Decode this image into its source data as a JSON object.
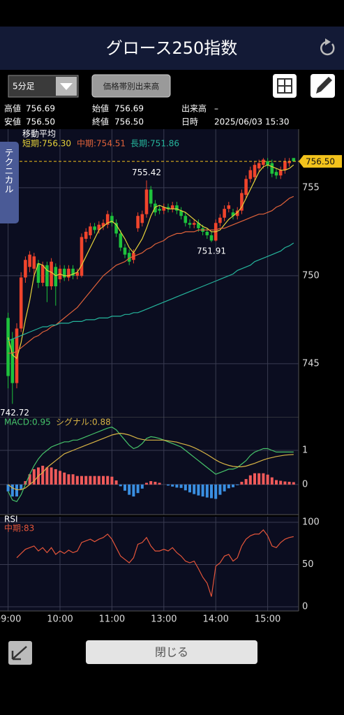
{
  "header": {
    "title": "グロース250指数"
  },
  "controls": {
    "interval": "5分足",
    "volume_button": "価格帯別出来高",
    "close_button": "閉じる"
  },
  "info": {
    "rows": [
      [
        {
          "label": "高値",
          "value": "756.69"
        },
        {
          "label": "始値",
          "value": "756.69"
        },
        {
          "label": "出来高",
          "value": "–"
        }
      ],
      [
        {
          "label": "安値",
          "value": "756.50"
        },
        {
          "label": "終値",
          "value": "756.50"
        },
        {
          "label": "日時",
          "value": "2025/06/03 15:30"
        }
      ]
    ]
  },
  "side_tab": "テクニカル",
  "chart_data": [
    {
      "type": "candlestick",
      "legend_title": "移動平均",
      "categories": [
        "09:00",
        null,
        null,
        null,
        null,
        null,
        null,
        null,
        null,
        null,
        null,
        null,
        "10:00",
        null,
        null,
        null,
        null,
        null,
        null,
        null,
        null,
        null,
        null,
        null,
        "11:00",
        null,
        null,
        null,
        null,
        null,
        null,
        null,
        null,
        null,
        null,
        null,
        "13:00",
        null,
        null,
        null,
        null,
        null,
        null,
        null,
        null,
        null,
        null,
        null,
        "14:00",
        null,
        null,
        null,
        null,
        null,
        null,
        null,
        null,
        null,
        null,
        null,
        "15:00",
        null,
        null,
        null,
        null,
        null,
        null
      ],
      "open": [
        747.6,
        746.4,
        743.9,
        747.0,
        749.9,
        750.5,
        750.4,
        750.7,
        749.6,
        750.6,
        749.4,
        750.5,
        749.8,
        750.4,
        749.9,
        750.4,
        750.0,
        750.0,
        752.1,
        752.3,
        752.8,
        752.6,
        752.8,
        752.9,
        753.4,
        753.0,
        752.4,
        751.6,
        751.3,
        750.9,
        752.7,
        753.0,
        753.5,
        754.9,
        754.1,
        753.8,
        753.7,
        753.9,
        753.8,
        754.0,
        753.7,
        753.4,
        753.0,
        752.9,
        753.0,
        752.7,
        752.5,
        752.3,
        752.0,
        753.0,
        753.3,
        753.8,
        753.6,
        753.4,
        753.7,
        754.6,
        755.5,
        755.6,
        756.1,
        756.3,
        756.5,
        756.4,
        755.9,
        755.7,
        756.0,
        756.4,
        756.69
      ],
      "high": [
        747.9,
        746.8,
        747.3,
        750.2,
        751.1,
        751.4,
        751.3,
        750.9,
        750.8,
        750.8,
        751.0,
        750.7,
        750.6,
        750.6,
        750.6,
        750.6,
        750.4,
        752.4,
        752.7,
        753.0,
        753.0,
        753.1,
        753.2,
        753.7,
        753.6,
        753.2,
        752.6,
        751.8,
        751.5,
        751.5,
        753.6,
        753.7,
        755.42,
        755.1,
        754.3,
        754.0,
        754.1,
        754.1,
        754.2,
        754.2,
        753.9,
        753.6,
        753.2,
        753.2,
        753.2,
        752.9,
        752.7,
        752.5,
        753.2,
        753.5,
        754.0,
        754.2,
        753.8,
        753.9,
        754.9,
        755.7,
        756.2,
        756.5,
        756.6,
        756.69,
        756.69,
        756.6,
        756.1,
        756.2,
        756.69,
        756.69,
        756.69
      ],
      "low": [
        743.6,
        742.72,
        743.6,
        746.8,
        749.6,
        750.2,
        749.9,
        749.3,
        749.4,
        748.5,
        749.2,
        748.3,
        749.6,
        749.7,
        749.7,
        749.8,
        749.8,
        749.9,
        751.9,
        752.1,
        752.4,
        752.4,
        752.6,
        752.7,
        752.8,
        752.2,
        751.4,
        751.0,
        750.6,
        750.7,
        752.5,
        752.8,
        753.3,
        753.9,
        753.4,
        753.5,
        753.5,
        753.6,
        753.6,
        753.5,
        753.2,
        752.8,
        752.7,
        752.7,
        752.5,
        752.3,
        752.1,
        751.91,
        751.95,
        752.8,
        753.1,
        753.6,
        753.2,
        753.2,
        753.5,
        754.4,
        755.3,
        755.4,
        755.9,
        756.1,
        756.1,
        755.6,
        755.5,
        755.5,
        755.8,
        756.2,
        756.5
      ],
      "close": [
        744.3,
        743.9,
        747.0,
        749.9,
        750.9,
        751.2,
        751.1,
        749.6,
        750.6,
        749.4,
        750.8,
        749.4,
        750.4,
        749.9,
        750.4,
        750.0,
        750.2,
        752.2,
        752.5,
        752.8,
        752.6,
        752.9,
        753.0,
        753.5,
        753.0,
        752.4,
        751.6,
        751.2,
        750.8,
        751.3,
        753.4,
        753.5,
        754.9,
        754.1,
        753.6,
        753.7,
        753.9,
        753.8,
        754.0,
        753.7,
        753.4,
        753.0,
        752.9,
        753.0,
        752.7,
        752.5,
        752.3,
        752.0,
        753.0,
        753.3,
        753.8,
        754.0,
        753.4,
        753.7,
        754.7,
        755.5,
        756.0,
        756.3,
        756.4,
        756.6,
        756.3,
        755.8,
        755.7,
        756.0,
        756.5,
        756.5,
        756.5
      ],
      "up_color": "#f0442c",
      "down_color": "#1ec23c",
      "series": [
        {
          "name": "短期:756.30",
          "color": "#e6d23a",
          "values": [
            746.5,
            745.5,
            745.3,
            746.2,
            747.5,
            748.6,
            750.0,
            750.7,
            750.6,
            750.3,
            750.2,
            750.0,
            750.1,
            750.0,
            750.0,
            750.1,
            750.2,
            750.6,
            751.1,
            751.6,
            752.1,
            752.6,
            752.8,
            753.0,
            753.1,
            752.9,
            752.5,
            752.1,
            751.6,
            751.3,
            751.7,
            752.1,
            752.7,
            753.4,
            753.9,
            754.0,
            753.9,
            753.8,
            753.8,
            753.8,
            753.7,
            753.6,
            753.4,
            753.2,
            753.0,
            752.8,
            752.7,
            752.5,
            752.5,
            752.6,
            752.9,
            753.2,
            753.4,
            753.6,
            753.9,
            754.4,
            754.9,
            755.4,
            755.9,
            756.2,
            756.3,
            756.2,
            756.1,
            756.0,
            756.0,
            756.1,
            756.3
          ]
        },
        {
          "name": "中期:754.51",
          "color": "#e0623a",
          "values": [
            745.6,
            745.6,
            745.7,
            745.9,
            746.1,
            746.3,
            746.5,
            746.6,
            746.8,
            746.9,
            747.1,
            747.2,
            747.4,
            747.6,
            747.8,
            748.0,
            748.2,
            748.5,
            748.8,
            749.1,
            749.4,
            749.7,
            750.0,
            750.2,
            750.4,
            750.6,
            750.7,
            750.8,
            751.0,
            751.1,
            751.2,
            751.3,
            751.5,
            751.6,
            751.8,
            751.9,
            752.0,
            752.2,
            752.3,
            752.4,
            752.4,
            752.5,
            752.5,
            752.5,
            752.6,
            752.6,
            752.6,
            752.6,
            752.6,
            752.7,
            752.7,
            752.8,
            752.9,
            753.0,
            753.1,
            753.2,
            753.3,
            753.4,
            753.5,
            753.5,
            753.6,
            753.7,
            753.9,
            754.0,
            754.2,
            754.4,
            754.51
          ]
        },
        {
          "name": "長期:751.86",
          "color": "#25b59c",
          "values": [
            746.3,
            746.4,
            746.5,
            746.6,
            746.7,
            746.8,
            746.9,
            747.0,
            747.1,
            747.1,
            747.2,
            747.2,
            747.3,
            747.3,
            747.3,
            747.4,
            747.4,
            747.4,
            747.5,
            747.5,
            747.5,
            747.6,
            747.6,
            747.6,
            747.7,
            747.7,
            747.7,
            747.8,
            747.8,
            747.9,
            747.9,
            748.0,
            748.1,
            748.2,
            748.3,
            748.4,
            748.5,
            748.6,
            748.7,
            748.8,
            748.9,
            749.0,
            749.1,
            749.2,
            749.3,
            749.4,
            749.5,
            749.6,
            749.7,
            749.8,
            749.9,
            750.0,
            750.1,
            750.3,
            750.4,
            750.5,
            750.6,
            750.8,
            750.9,
            751.0,
            751.1,
            751.2,
            751.3,
            751.4,
            751.6,
            751.7,
            751.86
          ]
        }
      ],
      "annotations": [
        {
          "value": 742.72,
          "label": "742.72"
        },
        {
          "value": 755.42,
          "label": "755.42"
        },
        {
          "value": 751.91,
          "label": "751.91"
        }
      ],
      "last": {
        "value": 756.5,
        "label": "756.50",
        "color": "#f2c21c"
      },
      "ylim": [
        741.94,
        758.33
      ],
      "yticks": [
        745,
        750,
        755
      ],
      "grid": true
    },
    {
      "type": "macd",
      "series": [
        {
          "name": "MACD:0.95",
          "color": "#46c46a",
          "values": [
            -0.2,
            -0.45,
            -0.5,
            -0.3,
            0.0,
            0.3,
            0.55,
            0.75,
            0.9,
            1.0,
            1.1,
            1.15,
            1.2,
            1.25,
            1.25,
            1.3,
            1.3,
            1.35,
            1.4,
            1.45,
            1.5,
            1.55,
            1.6,
            1.65,
            1.68,
            1.6,
            1.45,
            1.3,
            1.15,
            1.05,
            1.1,
            1.2,
            1.35,
            1.4,
            1.38,
            1.35,
            1.3,
            1.25,
            1.2,
            1.15,
            1.1,
            1.0,
            0.9,
            0.8,
            0.7,
            0.6,
            0.5,
            0.4,
            0.3,
            0.35,
            0.4,
            0.45,
            0.45,
            0.5,
            0.6,
            0.7,
            0.85,
            0.95,
            1.0,
            1.05,
            1.05,
            1.0,
            0.95,
            0.95,
            0.95,
            0.95,
            0.95
          ]
        },
        {
          "name": "シグナル:0.88",
          "color": "#d8b445",
          "values": [
            0.0,
            -0.1,
            -0.15,
            -0.15,
            -0.1,
            0.0,
            0.1,
            0.25,
            0.35,
            0.5,
            0.6,
            0.7,
            0.8,
            0.9,
            0.95,
            1.0,
            1.05,
            1.1,
            1.15,
            1.2,
            1.25,
            1.3,
            1.35,
            1.4,
            1.45,
            1.48,
            1.5,
            1.48,
            1.45,
            1.4,
            1.35,
            1.32,
            1.3,
            1.3,
            1.3,
            1.3,
            1.3,
            1.28,
            1.26,
            1.24,
            1.2,
            1.17,
            1.13,
            1.08,
            1.02,
            0.95,
            0.88,
            0.8,
            0.72,
            0.65,
            0.6,
            0.56,
            0.53,
            0.52,
            0.52,
            0.54,
            0.58,
            0.62,
            0.67,
            0.72,
            0.76,
            0.79,
            0.82,
            0.84,
            0.86,
            0.87,
            0.88
          ]
        }
      ],
      "histogram": {
        "up_color": "#f05a5a",
        "down_color": "#3a8fe2",
        "values": [
          -0.2,
          -0.35,
          -0.35,
          -0.15,
          0.1,
          0.3,
          0.45,
          0.5,
          0.55,
          0.5,
          0.5,
          0.45,
          0.4,
          0.35,
          0.3,
          0.3,
          0.25,
          0.25,
          0.25,
          0.25,
          0.25,
          0.25,
          0.25,
          0.25,
          0.23,
          0.12,
          -0.05,
          -0.18,
          -0.3,
          -0.35,
          -0.25,
          -0.12,
          0.05,
          0.1,
          0.08,
          0.05,
          0.0,
          -0.03,
          -0.06,
          -0.09,
          -0.1,
          -0.17,
          -0.23,
          -0.28,
          -0.32,
          -0.35,
          -0.38,
          -0.4,
          -0.42,
          -0.3,
          -0.2,
          -0.11,
          -0.08,
          -0.02,
          0.08,
          0.16,
          0.27,
          0.33,
          0.33,
          0.33,
          0.29,
          0.21,
          0.13,
          0.11,
          0.09,
          0.08,
          0.07
        ]
      },
      "ylim": [
        -0.88,
        1.96
      ],
      "yticks": [
        0,
        1
      ],
      "grid": true
    },
    {
      "type": "line",
      "title": "RSI",
      "series": [
        {
          "name": "中期:83",
          "color": "#e5553a",
          "values": [
            null,
            null,
            58,
            63,
            68,
            70,
            72,
            66,
            70,
            64,
            70,
            62,
            66,
            63,
            67,
            64,
            66,
            76,
            78,
            80,
            77,
            80,
            82,
            86,
            80,
            70,
            60,
            56,
            52,
            58,
            74,
            76,
            82,
            72,
            66,
            66,
            68,
            66,
            70,
            64,
            60,
            54,
            52,
            54,
            45,
            35,
            28,
            12,
            48,
            52,
            60,
            62,
            54,
            58,
            72,
            80,
            84,
            86,
            86,
            91,
            84,
            72,
            70,
            76,
            80,
            82,
            83
          ]
        }
      ],
      "ylim": [
        -5,
        106.6
      ],
      "yticks": [
        0,
        50,
        100
      ],
      "grid": true
    }
  ]
}
